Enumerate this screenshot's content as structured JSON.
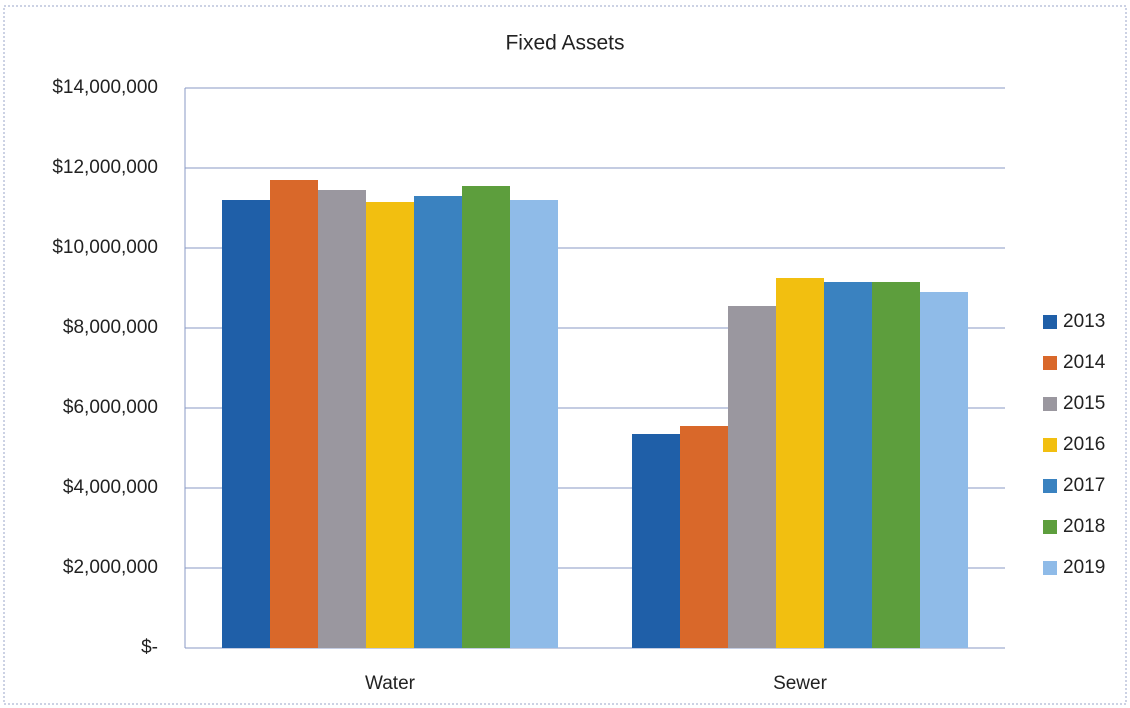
{
  "chart_data": {
    "type": "bar",
    "title": "Fixed Assets",
    "categories": [
      "Water",
      "Sewer"
    ],
    "series": [
      {
        "name": "2013",
        "color": "#1f5fa8",
        "values": [
          11200000,
          5350000
        ]
      },
      {
        "name": "2014",
        "color": "#d9682a",
        "values": [
          11700000,
          5550000
        ]
      },
      {
        "name": "2015",
        "color": "#9a979f",
        "values": [
          11450000,
          8550000
        ]
      },
      {
        "name": "2016",
        "color": "#f2bf10",
        "values": [
          11150000,
          9250000
        ]
      },
      {
        "name": "2017",
        "color": "#3a82c0",
        "values": [
          11300000,
          9150000
        ]
      },
      {
        "name": "2018",
        "color": "#5d9e3d",
        "values": [
          11550000,
          9150000
        ]
      },
      {
        "name": "2019",
        "color": "#8fbbe8",
        "values": [
          11200000,
          8900000
        ]
      }
    ],
    "ylim": [
      0,
      14000000
    ],
    "yticks": [
      {
        "value": 0,
        "label": "$-"
      },
      {
        "value": 2000000,
        "label": "$2,000,000"
      },
      {
        "value": 4000000,
        "label": "$4,000,000"
      },
      {
        "value": 6000000,
        "label": "$6,000,000"
      },
      {
        "value": 8000000,
        "label": "$8,000,000"
      },
      {
        "value": 10000000,
        "label": "$10,000,000"
      },
      {
        "value": 12000000,
        "label": "$12,000,000"
      },
      {
        "value": 14000000,
        "label": "$14,000,000"
      }
    ],
    "grid": true,
    "legend": "right"
  }
}
